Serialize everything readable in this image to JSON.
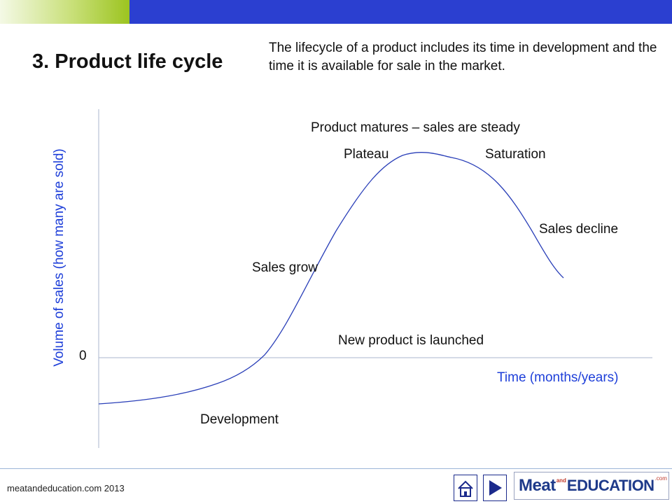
{
  "slide": {
    "title": "3. Product life cycle",
    "intro": "The lifecycle of a product includes its time in development and the time it is available for sale in the market."
  },
  "diagram": {
    "y_axis_label": "Volume of sales (how many are sold)",
    "x_axis_label": "Time (months/years)",
    "zero_label": "0",
    "stages": {
      "development": "Development",
      "launch": "New product is launched",
      "growth": "Sales grow",
      "maturity": "Product matures – sales are steady",
      "plateau": "Plateau",
      "saturation": "Saturation",
      "decline": "Sales decline"
    },
    "colors": {
      "axis_label": "#1e3fd9",
      "curve": "#2a3fb8",
      "axes": "#aab6cc"
    }
  },
  "footer": {
    "credit": "meatandeducation.com 2013",
    "home_icon": "home-icon",
    "next_icon": "next-arrow-icon",
    "brand": {
      "meat": "Meat",
      "and": "and",
      "education": "EDUCATION",
      "com": ".com"
    }
  }
}
